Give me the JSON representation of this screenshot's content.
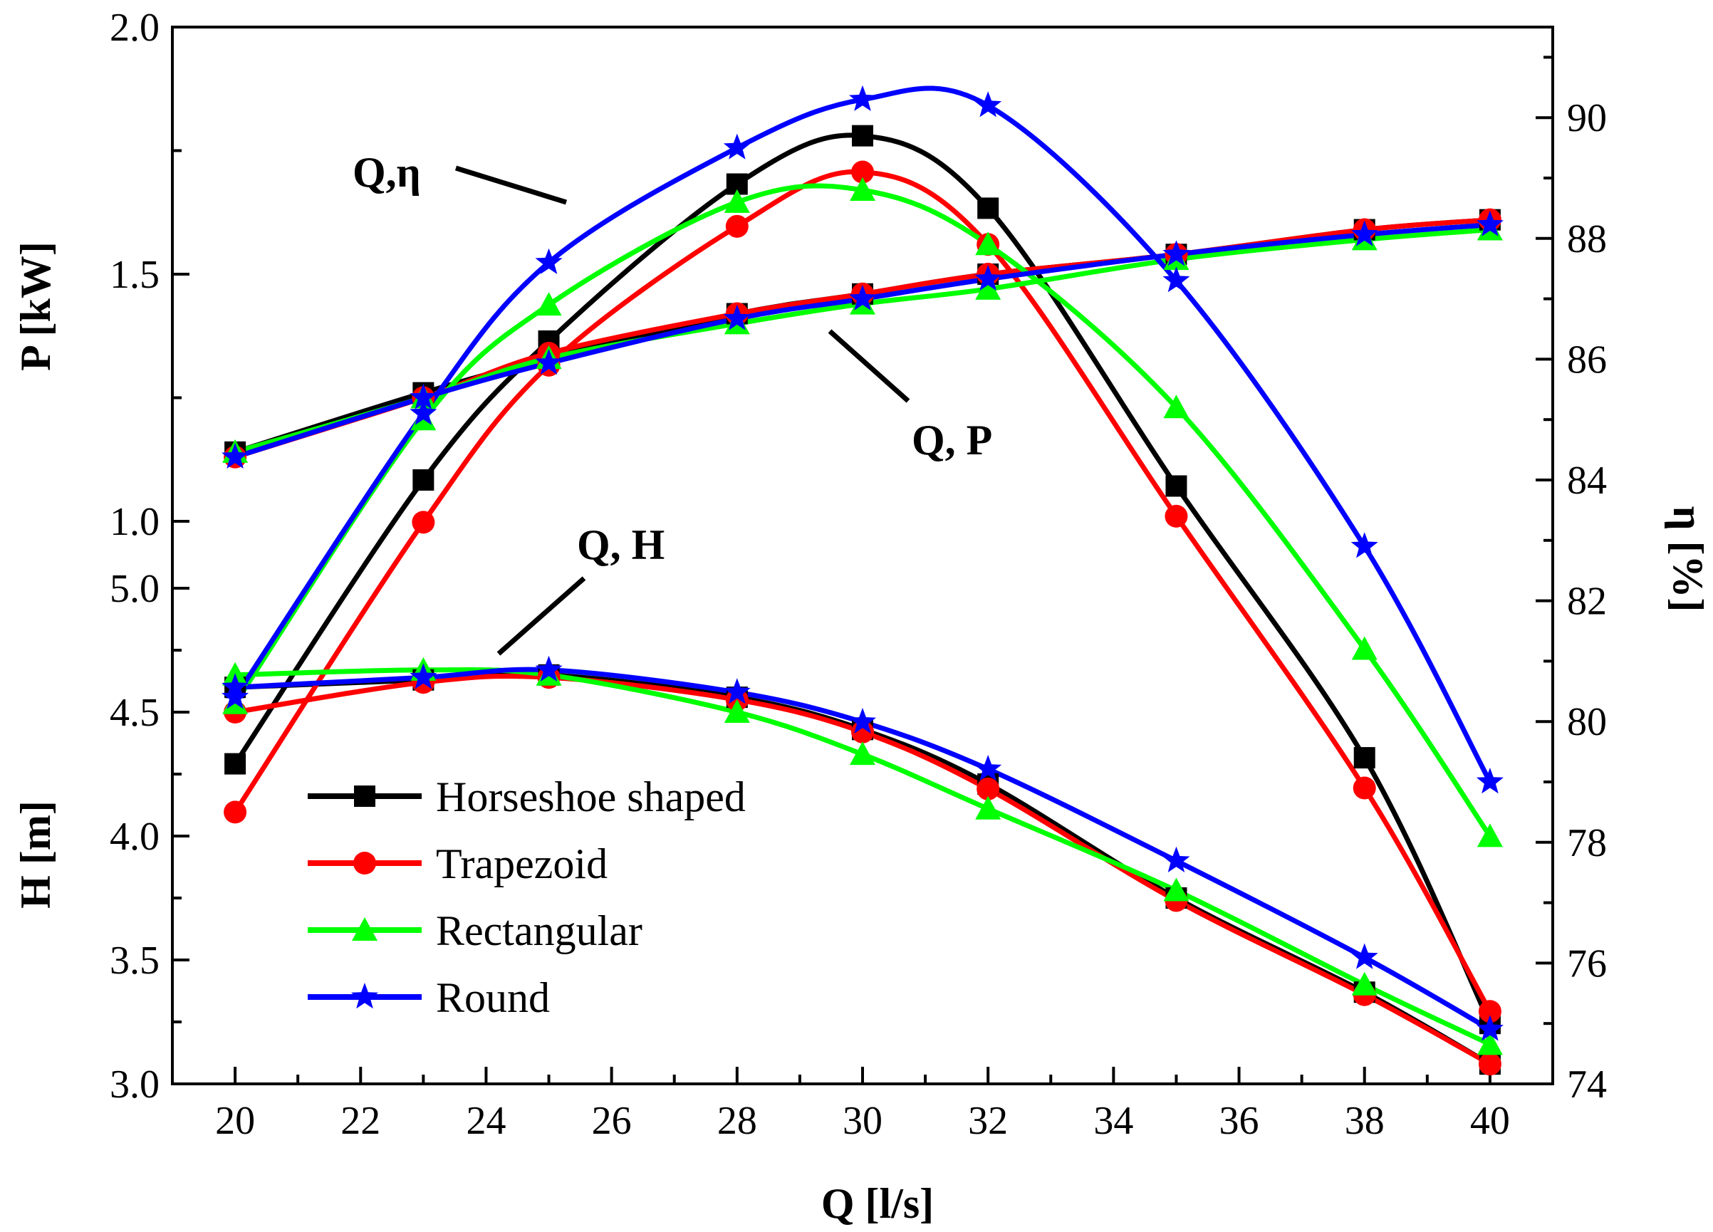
{
  "chart_data": {
    "type": "line",
    "x": [
      20,
      23,
      25,
      28,
      30,
      32,
      35,
      38,
      40
    ],
    "xlabel": "Q [l/s]",
    "xlim": [
      19,
      41
    ],
    "xticks": [
      "20",
      "22",
      "24",
      "26",
      "28",
      "30",
      "32",
      "34",
      "36",
      "38",
      "40"
    ],
    "axes": {
      "P": {
        "label": "P [kW]",
        "range": [
          1.0,
          2.0
        ],
        "ticks": [
          "1.0",
          "1.5",
          "2.0"
        ]
      },
      "H": {
        "label": "H [m]",
        "range": [
          3.0,
          5.0
        ],
        "ticks": [
          "3.0",
          "3.5",
          "4.0",
          "4.5",
          "5.0"
        ]
      },
      "eta": {
        "label": "η [%]",
        "range": [
          74,
          91.5
        ],
        "ticks": [
          "74",
          "76",
          "78",
          "80",
          "82",
          "84",
          "86",
          "88",
          "90"
        ]
      }
    },
    "annotations": {
      "eta": "Q,η",
      "P": "Q, P",
      "H": "Q, H"
    },
    "series": [
      {
        "name": "Horseshoe shaped",
        "color": "#000000",
        "marker": "square",
        "eta": [
          79.3,
          84.0,
          86.3,
          88.9,
          89.7,
          88.5,
          83.9,
          79.4,
          75.0
        ],
        "P": [
          1.14,
          1.26,
          1.33,
          1.42,
          1.46,
          1.5,
          1.54,
          1.59,
          1.61
        ],
        "H": [
          4.6,
          4.63,
          4.65,
          4.56,
          4.43,
          4.21,
          3.75,
          3.37,
          3.08
        ]
      },
      {
        "name": "Trapezoid",
        "color": "#ff0000",
        "marker": "circle",
        "eta": [
          78.5,
          83.3,
          85.9,
          88.2,
          89.1,
          87.9,
          83.4,
          78.9,
          75.2
        ],
        "P": [
          1.13,
          1.25,
          1.34,
          1.42,
          1.46,
          1.5,
          1.54,
          1.59,
          1.61
        ],
        "H": [
          4.5,
          4.62,
          4.64,
          4.55,
          4.42,
          4.19,
          3.74,
          3.36,
          3.08
        ]
      },
      {
        "name": "Rectangular",
        "color": "#00ff00",
        "marker": "triangle",
        "eta": [
          80.3,
          85.0,
          86.9,
          88.6,
          88.8,
          87.9,
          85.2,
          81.2,
          78.1
        ],
        "P": [
          1.14,
          1.25,
          1.33,
          1.4,
          1.44,
          1.47,
          1.53,
          1.57,
          1.59
        ],
        "H": [
          4.65,
          4.67,
          4.65,
          4.5,
          4.33,
          4.11,
          3.78,
          3.4,
          3.16
        ]
      },
      {
        "name": "Round",
        "color": "#0000ff",
        "marker": "star",
        "eta": [
          80.4,
          85.1,
          87.6,
          89.5,
          90.3,
          90.2,
          87.3,
          82.9,
          79.0
        ],
        "P": [
          1.13,
          1.25,
          1.32,
          1.41,
          1.45,
          1.49,
          1.54,
          1.58,
          1.6
        ],
        "H": [
          4.6,
          4.64,
          4.67,
          4.58,
          4.46,
          4.27,
          3.9,
          3.51,
          3.22
        ]
      }
    ]
  }
}
